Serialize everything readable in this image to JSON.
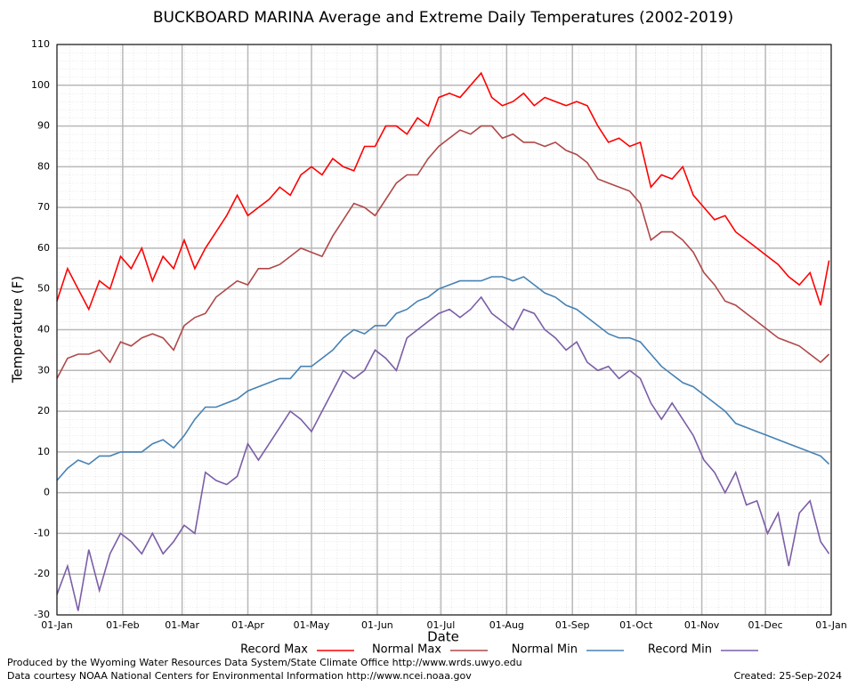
{
  "chart_data": {
    "type": "line",
    "title": "BUCKBOARD MARINA Average and Extreme Daily Temperatures (2002-2019)",
    "xlabel": "Date",
    "ylabel": "Temperature (F)",
    "x": [
      1,
      6,
      11,
      16,
      21,
      26,
      31,
      36,
      41,
      46,
      51,
      56,
      61,
      66,
      71,
      76,
      81,
      86,
      91,
      96,
      101,
      106,
      111,
      116,
      121,
      126,
      131,
      136,
      141,
      146,
      151,
      156,
      161,
      166,
      171,
      176,
      181,
      186,
      191,
      196,
      201,
      206,
      211,
      216,
      221,
      226,
      231,
      236,
      241,
      246,
      251,
      256,
      261,
      266,
      271,
      276,
      281,
      286,
      291,
      296,
      301,
      306,
      311,
      316,
      321,
      326,
      331,
      336,
      341,
      346,
      351,
      356,
      361,
      365
    ],
    "xlim": [
      1,
      366
    ],
    "xticks": [
      {
        "value": 1,
        "label": "01-Jan"
      },
      {
        "value": 32,
        "label": "01-Feb"
      },
      {
        "value": 60,
        "label": "01-Mar"
      },
      {
        "value": 91,
        "label": "01-Apr"
      },
      {
        "value": 121,
        "label": "01-May"
      },
      {
        "value": 152,
        "label": "01-Jun"
      },
      {
        "value": 182,
        "label": "01-Jul"
      },
      {
        "value": 213,
        "label": "01-Aug"
      },
      {
        "value": 244,
        "label": "01-Sep"
      },
      {
        "value": 274,
        "label": "01-Oct"
      },
      {
        "value": 305,
        "label": "01-Nov"
      },
      {
        "value": 335,
        "label": "01-Dec"
      },
      {
        "value": 366,
        "label": "01-Jan"
      }
    ],
    "ylim": [
      -30,
      110
    ],
    "yticks": [
      -30,
      -20,
      -10,
      0,
      10,
      20,
      30,
      40,
      50,
      60,
      70,
      80,
      90,
      100,
      110
    ],
    "grid": true,
    "series": [
      {
        "name": "Record Max",
        "color": "#ff0000",
        "values": [
          47,
          55,
          50,
          45,
          52,
          50,
          58,
          55,
          60,
          52,
          58,
          55,
          62,
          55,
          60,
          64,
          68,
          73,
          68,
          70,
          72,
          75,
          73,
          78,
          80,
          78,
          82,
          80,
          79,
          85,
          85,
          90,
          90,
          88,
          92,
          90,
          97,
          98,
          97,
          100,
          103,
          97,
          95,
          96,
          98,
          95,
          97,
          96,
          95,
          96,
          95,
          90,
          86,
          87,
          85,
          86,
          75,
          78,
          77,
          80,
          73,
          70,
          67,
          68,
          64,
          62,
          60,
          58,
          56,
          53,
          51,
          54,
          46,
          57
        ]
      },
      {
        "name": "Normal Max",
        "color": "#b04848",
        "values": [
          28,
          33,
          34,
          34,
          35,
          32,
          37,
          36,
          38,
          39,
          38,
          35,
          41,
          43,
          44,
          48,
          50,
          52,
          51,
          55,
          55,
          56,
          58,
          60,
          59,
          58,
          63,
          67,
          71,
          70,
          68,
          72,
          76,
          78,
          78,
          82,
          85,
          87,
          89,
          88,
          90,
          90,
          87,
          88,
          86,
          86,
          85,
          86,
          84,
          83,
          81,
          77,
          76,
          75,
          74,
          71,
          62,
          64,
          64,
          62,
          59,
          54,
          51,
          47,
          46,
          44,
          42,
          40,
          38,
          37,
          36,
          34,
          32,
          34
        ]
      },
      {
        "name": "Normal Min",
        "color": "#4682b4",
        "values": [
          3,
          6,
          8,
          7,
          9,
          9,
          10,
          10,
          10,
          12,
          13,
          11,
          14,
          18,
          21,
          21,
          22,
          23,
          25,
          26,
          27,
          28,
          28,
          31,
          31,
          33,
          35,
          38,
          40,
          39,
          41,
          41,
          44,
          45,
          47,
          48,
          50,
          51,
          52,
          52,
          52,
          53,
          53,
          52,
          53,
          51,
          49,
          48,
          46,
          45,
          43,
          41,
          39,
          38,
          38,
          37,
          34,
          31,
          29,
          27,
          26,
          24,
          22,
          20,
          17,
          16,
          15,
          14,
          13,
          12,
          11,
          10,
          9,
          7
        ]
      },
      {
        "name": "Record Min",
        "color": "#7b5ea7",
        "values": [
          -25,
          -18,
          -29,
          -14,
          -24,
          -15,
          -10,
          -12,
          -15,
          -10,
          -15,
          -12,
          -8,
          -10,
          5,
          3,
          2,
          4,
          12,
          8,
          12,
          16,
          20,
          18,
          15,
          20,
          25,
          30,
          28,
          30,
          35,
          33,
          30,
          38,
          40,
          42,
          44,
          45,
          43,
          45,
          48,
          44,
          42,
          40,
          45,
          44,
          40,
          38,
          35,
          37,
          32,
          30,
          31,
          28,
          30,
          28,
          22,
          18,
          22,
          18,
          14,
          8,
          5,
          0,
          5,
          -3,
          -2,
          -10,
          -5,
          -18,
          -5,
          -2,
          -12,
          -15
        ]
      }
    ],
    "footer_left": [
      "Produced by the Wyoming Water Resources Data System/State Climate Office http://www.wrds.uwyo.edu",
      "Data courtesy NOAA National Centers for Environmental Information http://www.ncei.noaa.gov"
    ],
    "footer_right": "Created:  25-Sep-2024"
  }
}
